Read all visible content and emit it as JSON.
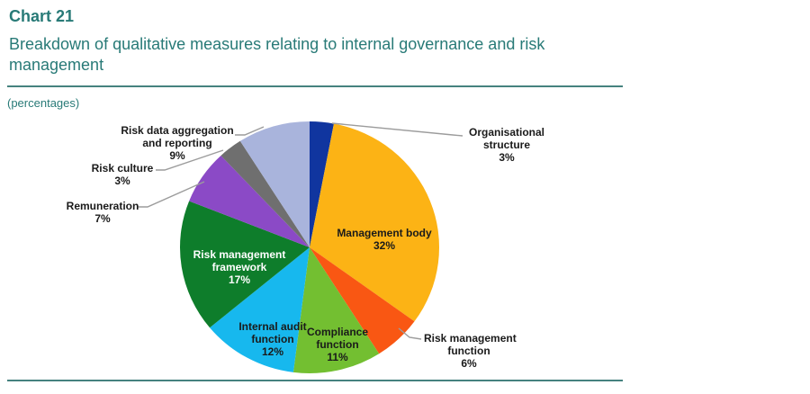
{
  "header": {
    "chart_label": "Chart 21",
    "title": "Breakdown of qualitative measures relating to internal governance and risk management",
    "unit_note": "(percentages)",
    "text_color": "#287A77",
    "rule_color": "#45827F"
  },
  "chart_data": {
    "type": "pie",
    "title": "Breakdown of qualitative measures relating to internal governance and risk management",
    "unit": "percentages",
    "start_angle": "12 o'clock",
    "direction": "clockwise",
    "leader_line_color": "#9C9C9C",
    "slices": [
      {
        "id": "organisational-structure",
        "label": "Organisational structure",
        "lines": [
          "Organisational",
          "structure"
        ],
        "value": 3,
        "pct_label": "3%",
        "color": "#10359F",
        "label_placement": "outside",
        "label_color": "#1A1A1A"
      },
      {
        "id": "management-body",
        "label": "Management body",
        "lines": [
          "Management body"
        ],
        "value": 32,
        "pct_label": "32%",
        "color": "#FCB315",
        "label_placement": "inside",
        "label_color": "#1A1A1A"
      },
      {
        "id": "risk-management-function",
        "label": "Risk management function",
        "lines": [
          "Risk management",
          "function"
        ],
        "value": 6,
        "pct_label": "6%",
        "color": "#F95713",
        "label_placement": "outside",
        "label_color": "#1A1A1A"
      },
      {
        "id": "compliance-function",
        "label": "Compliance function",
        "lines": [
          "Compliance",
          "function"
        ],
        "value": 11,
        "pct_label": "11%",
        "color": "#73BF31",
        "label_placement": "inside",
        "label_color": "#1A1A1A"
      },
      {
        "id": "internal-audit-function",
        "label": "Internal audit function",
        "lines": [
          "Internal audit",
          "function"
        ],
        "value": 12,
        "pct_label": "12%",
        "color": "#17B8EE",
        "label_placement": "inside",
        "label_color": "#1A1A1A"
      },
      {
        "id": "risk-management-framework",
        "label": "Risk management framework",
        "lines": [
          "Risk management",
          "framework"
        ],
        "value": 17,
        "pct_label": "17%",
        "color": "#0E7D2B",
        "label_placement": "inside",
        "label_color": "#FFFFFF"
      },
      {
        "id": "remuneration",
        "label": "Remuneration",
        "lines": [
          "Remuneration"
        ],
        "value": 7,
        "pct_label": "7%",
        "color": "#8B4AC6",
        "label_placement": "outside",
        "label_color": "#1A1A1A"
      },
      {
        "id": "risk-culture",
        "label": "Risk culture",
        "lines": [
          "Risk culture"
        ],
        "value": 3,
        "pct_label": "3%",
        "color": "#6F6F6F",
        "label_placement": "outside",
        "label_color": "#1A1A1A"
      },
      {
        "id": "risk-data-aggregation-and-reporting",
        "label": "Risk data aggregation and reporting",
        "lines": [
          "Risk data aggregation",
          "and reporting"
        ],
        "value": 9,
        "pct_label": "9%",
        "color": "#A9B4DC",
        "label_placement": "outside",
        "label_color": "#1A1A1A"
      }
    ]
  }
}
